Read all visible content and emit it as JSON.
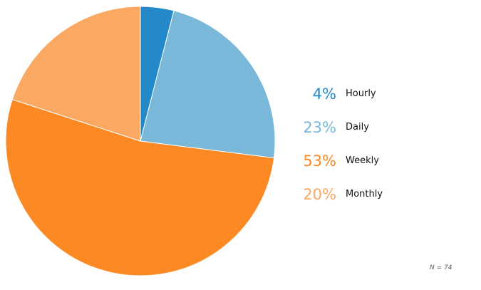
{
  "chart_data": {
    "type": "pie",
    "categories": [
      "Hourly",
      "Daily",
      "Weekly",
      "Monthly"
    ],
    "values": [
      4,
      23,
      53,
      20
    ],
    "value_labels": [
      "4%",
      "23%",
      "53%",
      "20%"
    ],
    "colors": [
      "#2389c9",
      "#7ab8d9",
      "#fd8925",
      "#fba863"
    ],
    "start": "12 o'clock",
    "direction": "clockwise",
    "legend_position": "right"
  },
  "note": "N = 74"
}
